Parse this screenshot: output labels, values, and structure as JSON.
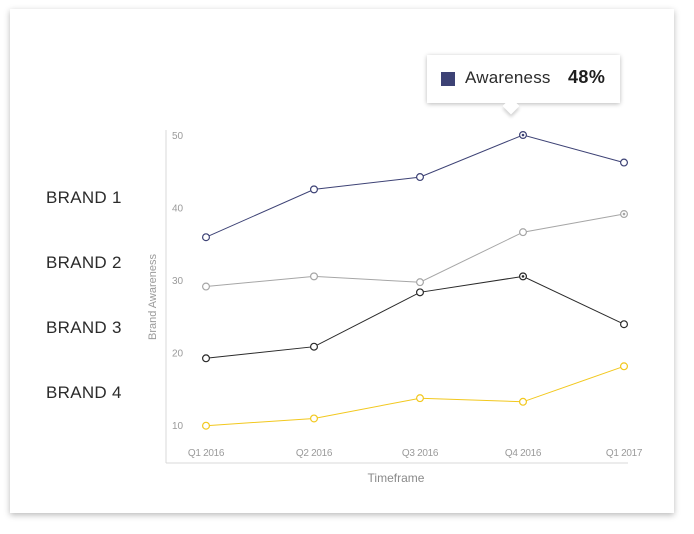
{
  "chart_data": {
    "type": "line",
    "title": "",
    "xlabel": "Timeframe",
    "ylabel": "Brand Awareness",
    "categories": [
      "Q1 2016",
      "Q2 2016",
      "Q3 2016",
      "Q4 2016",
      "Q1 2017"
    ],
    "yticks": [
      "10",
      "20",
      "30",
      "40",
      "50"
    ],
    "ylim": [
      8,
      52
    ],
    "series": [
      {
        "name": "BRAND 1",
        "color": "#3d4275",
        "values": [
          35.9,
          42.5,
          44.2,
          50,
          46.2
        ]
      },
      {
        "name": "BRAND 2",
        "color": "#a6a6a6",
        "values": [
          29.1,
          30.5,
          29.7,
          36.6,
          39.1
        ]
      },
      {
        "name": "BRAND 3",
        "color": "#2a2a2a",
        "values": [
          19.2,
          20.8,
          28.3,
          30.5,
          23.9
        ]
      },
      {
        "name": "BRAND 4",
        "color": "#f2c81e",
        "values": [
          9.9,
          10.9,
          13.7,
          13.2,
          18.1
        ]
      }
    ],
    "grid": false,
    "legend": "left"
  },
  "tooltip": {
    "label": "Awareness",
    "value": "48%",
    "swatch_color": "#3d4275"
  }
}
